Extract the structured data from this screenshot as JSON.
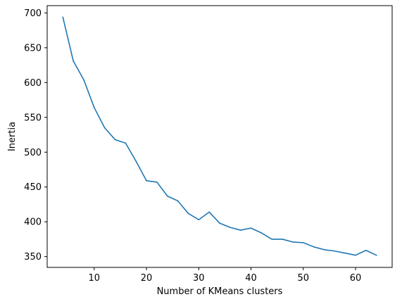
{
  "chart_data": {
    "type": "line",
    "title": "",
    "xlabel": "Number of KMeans clusters",
    "ylabel": "Inertia",
    "xlim": [
      1,
      67
    ],
    "ylim": [
      334.5,
      710.5
    ],
    "xticks": [
      10,
      20,
      30,
      40,
      50,
      60
    ],
    "yticks": [
      350,
      400,
      450,
      500,
      550,
      600,
      650,
      700
    ],
    "grid": false,
    "legend": "none",
    "series": [
      {
        "color": "#1f77b4",
        "x": [
          4,
          6,
          8,
          10,
          12,
          14,
          16,
          18,
          20,
          22,
          24,
          26,
          28,
          30,
          32,
          34,
          36,
          38,
          40,
          42,
          44,
          46,
          48,
          50,
          52,
          54,
          56,
          58,
          60,
          62,
          64
        ],
        "y": [
          694,
          631,
          604,
          564,
          535,
          518,
          513,
          487,
          459,
          457,
          437,
          430,
          412,
          403,
          414,
          398,
          392,
          388,
          391,
          384,
          375,
          375,
          371,
          370,
          364,
          360,
          358,
          355,
          352,
          359,
          352
        ]
      }
    ]
  }
}
